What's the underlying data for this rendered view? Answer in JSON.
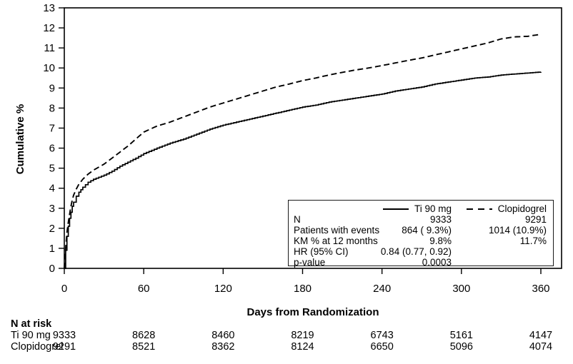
{
  "chart_data": {
    "type": "line",
    "title": "",
    "xlabel": "Days from Randomization",
    "ylabel": "Cumulative %",
    "xlim": [
      0,
      360
    ],
    "ylim": [
      0,
      13
    ],
    "x_ticks": [
      0,
      60,
      120,
      180,
      240,
      300,
      360
    ],
    "y_ticks": [
      0,
      1,
      2,
      3,
      4,
      5,
      6,
      7,
      8,
      9,
      10,
      11,
      12,
      13
    ],
    "grid": false,
    "frame": true,
    "legend_position": "inside-bottom-right",
    "line_color": "#000000",
    "series": [
      {
        "name": "Ti 90 mg",
        "style": "solid",
        "points": [
          [
            0,
            0
          ],
          [
            1,
            0.9
          ],
          [
            2,
            1.6
          ],
          [
            3,
            2.1
          ],
          [
            4,
            2.5
          ],
          [
            5,
            2.8
          ],
          [
            6,
            3.1
          ],
          [
            7,
            3.3
          ],
          [
            9,
            3.6
          ],
          [
            11,
            3.8
          ],
          [
            14,
            4.05
          ],
          [
            18,
            4.3
          ],
          [
            22,
            4.45
          ],
          [
            26,
            4.55
          ],
          [
            30,
            4.65
          ],
          [
            36,
            4.85
          ],
          [
            42,
            5.1
          ],
          [
            48,
            5.3
          ],
          [
            54,
            5.5
          ],
          [
            60,
            5.73
          ],
          [
            70,
            6.0
          ],
          [
            80,
            6.25
          ],
          [
            90,
            6.45
          ],
          [
            100,
            6.7
          ],
          [
            110,
            6.95
          ],
          [
            120,
            7.15
          ],
          [
            130,
            7.3
          ],
          [
            140,
            7.45
          ],
          [
            150,
            7.6
          ],
          [
            160,
            7.75
          ],
          [
            170,
            7.9
          ],
          [
            180,
            8.05
          ],
          [
            190,
            8.15
          ],
          [
            200,
            8.3
          ],
          [
            210,
            8.4
          ],
          [
            220,
            8.5
          ],
          [
            230,
            8.6
          ],
          [
            240,
            8.7
          ],
          [
            250,
            8.85
          ],
          [
            260,
            8.95
          ],
          [
            270,
            9.05
          ],
          [
            280,
            9.2
          ],
          [
            290,
            9.3
          ],
          [
            300,
            9.4
          ],
          [
            310,
            9.5
          ],
          [
            320,
            9.55
          ],
          [
            330,
            9.65
          ],
          [
            340,
            9.7
          ],
          [
            350,
            9.75
          ],
          [
            360,
            9.8
          ]
        ]
      },
      {
        "name": "Clopidogrel",
        "style": "dashed",
        "points": [
          [
            0,
            0
          ],
          [
            1,
            1.0
          ],
          [
            2,
            1.8
          ],
          [
            3,
            2.3
          ],
          [
            4,
            2.7
          ],
          [
            5,
            3.1
          ],
          [
            6,
            3.4
          ],
          [
            7,
            3.65
          ],
          [
            9,
            3.95
          ],
          [
            11,
            4.2
          ],
          [
            14,
            4.45
          ],
          [
            18,
            4.7
          ],
          [
            22,
            4.9
          ],
          [
            26,
            5.05
          ],
          [
            30,
            5.2
          ],
          [
            36,
            5.5
          ],
          [
            42,
            5.8
          ],
          [
            48,
            6.1
          ],
          [
            54,
            6.45
          ],
          [
            60,
            6.8
          ],
          [
            70,
            7.1
          ],
          [
            80,
            7.3
          ],
          [
            90,
            7.55
          ],
          [
            100,
            7.8
          ],
          [
            110,
            8.05
          ],
          [
            120,
            8.25
          ],
          [
            130,
            8.45
          ],
          [
            140,
            8.65
          ],
          [
            150,
            8.85
          ],
          [
            160,
            9.05
          ],
          [
            170,
            9.2
          ],
          [
            180,
            9.37
          ],
          [
            190,
            9.5
          ],
          [
            200,
            9.65
          ],
          [
            210,
            9.78
          ],
          [
            220,
            9.9
          ],
          [
            230,
            10.0
          ],
          [
            240,
            10.12
          ],
          [
            250,
            10.25
          ],
          [
            260,
            10.38
          ],
          [
            270,
            10.5
          ],
          [
            280,
            10.65
          ],
          [
            290,
            10.8
          ],
          [
            300,
            10.95
          ],
          [
            310,
            11.1
          ],
          [
            320,
            11.25
          ],
          [
            330,
            11.45
          ],
          [
            340,
            11.55
          ],
          [
            350,
            11.58
          ],
          [
            360,
            11.68
          ]
        ]
      }
    ]
  },
  "legend_box": {
    "series_labels": [
      "Ti 90 mg",
      "Clopidogrel"
    ],
    "rows": [
      {
        "label": "N",
        "ti": "9333",
        "clopi": "9291"
      },
      {
        "label": "Patients with events",
        "ti": "864 ( 9.3%)",
        "clopi": "1014 (10.9%)"
      },
      {
        "label": "KM % at 12 months",
        "ti": "9.8%",
        "clopi": "11.7%"
      },
      {
        "label": "HR (95% CI)",
        "ti": "0.84 (0.77, 0.92)",
        "clopi": ""
      },
      {
        "label": "p-value",
        "ti": "0.0003",
        "clopi": ""
      }
    ]
  },
  "risk_table": {
    "title": "N at risk",
    "rows": [
      {
        "label": "Ti 90 mg",
        "values": [
          "9333",
          "8628",
          "8460",
          "8219",
          "6743",
          "5161",
          "4147"
        ]
      },
      {
        "label": "Clopidogrel",
        "values": [
          "9291",
          "8521",
          "8362",
          "8124",
          "6650",
          "5096",
          "4074"
        ]
      }
    ]
  }
}
